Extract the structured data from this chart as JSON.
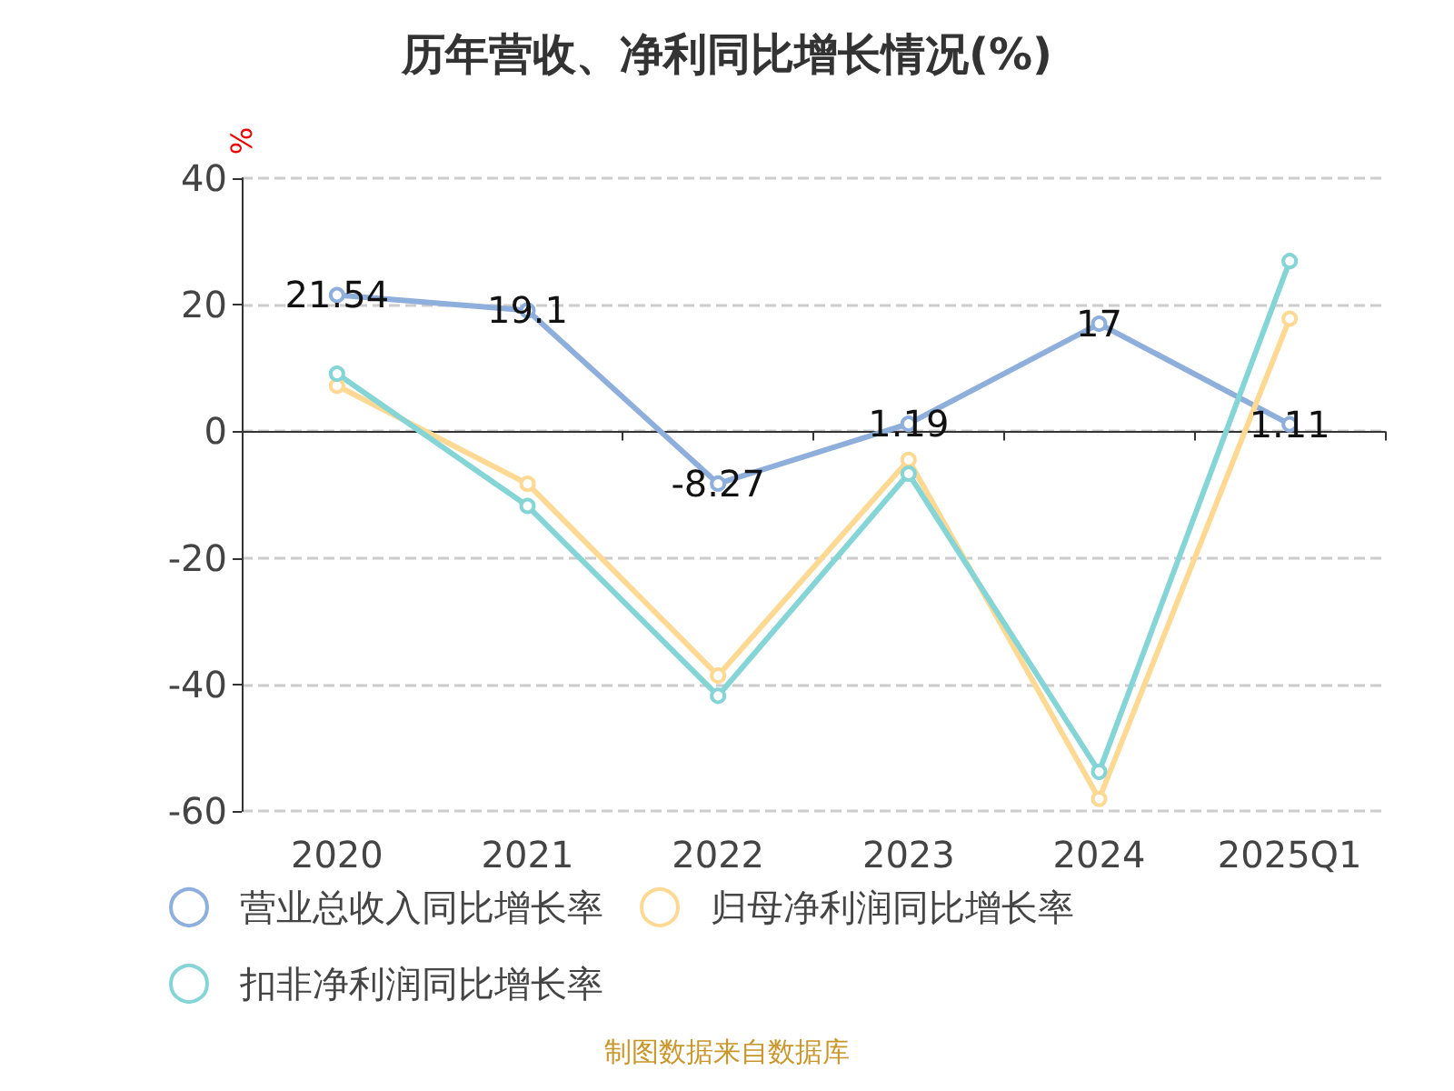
{
  "chart_data": {
    "type": "line",
    "title": "历年营收、净利同比增长情况(%)",
    "ylabel": "%",
    "categories": [
      "2020",
      "2021",
      "2022",
      "2023",
      "2024",
      "2025Q1"
    ],
    "series": [
      {
        "name": "营业总收入同比增长率",
        "color": "#8eaedb",
        "values": [
          21.54,
          19.1,
          -8.27,
          1.19,
          17,
          1.11
        ],
        "value_labels": [
          "21.54",
          "19.1",
          "-8.27",
          "1.19",
          "17",
          "1.11"
        ]
      },
      {
        "name": "归母净利润同比增长率",
        "color": "#fdd993",
        "values": [
          7.2,
          -8.3,
          -38.6,
          -4.5,
          -58.1,
          17.8
        ]
      },
      {
        "name": "扣非净利润同比增长率",
        "color": "#85d4d6",
        "values": [
          9.1,
          -11.8,
          -41.8,
          -6.7,
          -53.8,
          26.9
        ]
      }
    ],
    "ylim": [
      -60,
      40
    ],
    "yticks": [
      -60,
      -40,
      -20,
      0,
      20,
      40
    ],
    "grid": "y",
    "legend": "bottom",
    "marker": "circle",
    "line_style": "solid",
    "annotations": [
      "制图数据来自数据库"
    ]
  }
}
